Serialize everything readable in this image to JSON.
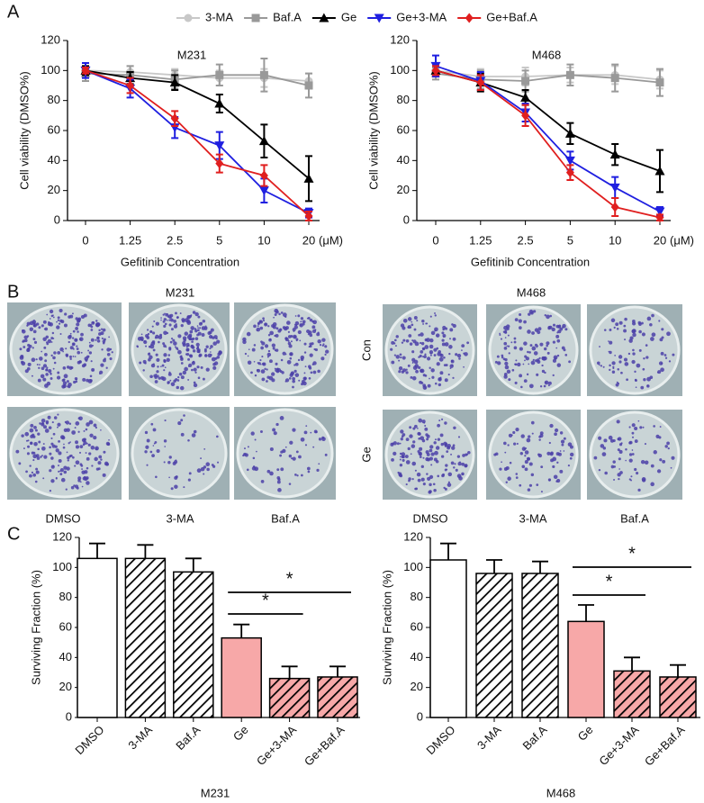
{
  "panel_labels": [
    "A",
    "B",
    "C"
  ],
  "chart_data": [
    {
      "type": "line",
      "title": "M231",
      "x_label": "Gefitinib Concentration",
      "y_label": "Cell viability (DMSO%)",
      "categories": [
        "0",
        "1.25",
        "2.5",
        "5",
        "10",
        "20"
      ],
      "x_unit": "(μM)",
      "ylim": [
        0,
        120
      ],
      "yticks": [
        0,
        20,
        40,
        60,
        80,
        100,
        120
      ],
      "series": [
        {
          "name": "3-MA",
          "color": "#c8c8c8",
          "marker": "circle",
          "values": [
            100,
            99,
            97,
            95,
            95,
            93
          ],
          "errors": [
            5,
            4,
            4,
            5,
            6,
            5
          ]
        },
        {
          "name": "Baf.A",
          "color": "#999999",
          "marker": "square",
          "values": [
            98,
            97,
            94,
            97,
            97,
            90
          ],
          "errors": [
            5,
            6,
            6,
            7,
            11,
            8
          ]
        },
        {
          "name": "Ge",
          "color": "#000000",
          "marker": "triangle-up",
          "values": [
            100,
            95,
            92,
            78,
            53,
            28
          ],
          "errors": [
            3,
            4,
            5,
            6,
            11,
            15
          ]
        },
        {
          "name": "Ge+3-MA",
          "color": "#1f1fe0",
          "marker": "triangle-down",
          "values": [
            100,
            88,
            62,
            50,
            20,
            5
          ],
          "errors": [
            5,
            6,
            7,
            9,
            8,
            3
          ]
        },
        {
          "name": "Ge+Baf.A",
          "color": "#e01f1f",
          "marker": "diamond",
          "values": [
            100,
            90,
            68,
            38,
            30,
            3
          ],
          "errors": [
            2,
            5,
            5,
            6,
            7,
            3
          ]
        }
      ]
    },
    {
      "type": "line",
      "title": "M468",
      "x_label": "Gefitinib Concentration",
      "y_label": "Cell viability (DMSO%)",
      "categories": [
        "0",
        "1.25",
        "2.5",
        "5",
        "10",
        "20"
      ],
      "x_unit": "(μM)",
      "ylim": [
        0,
        120
      ],
      "yticks": [
        0,
        20,
        40,
        60,
        80,
        100,
        120
      ],
      "series": [
        {
          "color": "#c8c8c8",
          "marker": "circle",
          "values": [
            100,
            96,
            96,
            97,
            97,
            94
          ],
          "errors": [
            4,
            5,
            6,
            5,
            6,
            6
          ]
        },
        {
          "color": "#999999",
          "marker": "square",
          "values": [
            98,
            94,
            93,
            97,
            95,
            92
          ],
          "errors": [
            4,
            6,
            7,
            7,
            9,
            9
          ]
        },
        {
          "color": "#000000",
          "marker": "triangle-up",
          "values": [
            100,
            92,
            82,
            58,
            44,
            33
          ],
          "errors": [
            3,
            6,
            5,
            7,
            7,
            14
          ]
        },
        {
          "color": "#1f1fe0",
          "marker": "triangle-down",
          "values": [
            103,
            93,
            72,
            40,
            22,
            6
          ],
          "errors": [
            7,
            6,
            6,
            6,
            7,
            3
          ]
        },
        {
          "color": "#e01f1f",
          "marker": "diamond",
          "values": [
            100,
            92,
            70,
            32,
            9,
            2
          ],
          "errors": [
            3,
            5,
            7,
            5,
            6,
            2
          ]
        }
      ]
    },
    {
      "type": "bar",
      "x_label": "M231",
      "y_label": "Surviving Fraction (%)",
      "categories": [
        "DMSO",
        "3-MA",
        "Baf.A",
        "Ge",
        "Ge+3-MA",
        "Ge+Baf.A"
      ],
      "values": [
        106,
        106,
        97,
        53,
        26,
        27
      ],
      "errors": [
        10,
        9,
        9,
        9,
        8,
        7
      ],
      "colors": [
        "#ffffff",
        "#ffffff",
        "#ffffff",
        "#f7a8a8",
        "#f7a8a8",
        "#f7a8a8"
      ],
      "hatched": [
        false,
        true,
        true,
        false,
        true,
        true
      ],
      "annotations": [
        {
          "label": "*"
        },
        {
          "label": "*"
        }
      ],
      "ylim": [
        0,
        120
      ],
      "yticks": [
        0,
        20,
        40,
        60,
        80,
        100,
        120
      ]
    },
    {
      "type": "bar",
      "x_label": "M468",
      "y_label": "Surviving Fraction (%)",
      "categories": [
        "DMSO",
        "3-MA",
        "Baf.A",
        "Ge",
        "Ge+3-MA",
        "Ge+Baf.A"
      ],
      "values": [
        105,
        96,
        96,
        64,
        31,
        27
      ],
      "errors": [
        11,
        9,
        8,
        11,
        9,
        8
      ],
      "colors": [
        "#ffffff",
        "#ffffff",
        "#ffffff",
        "#f7a8a8",
        "#f7a8a8",
        "#f7a8a8"
      ],
      "hatched": [
        false,
        true,
        true,
        false,
        true,
        true
      ],
      "annotations": [
        {
          "label": "*"
        },
        {
          "label": "*"
        }
      ],
      "ylim": [
        0,
        120
      ],
      "yticks": [
        0,
        20,
        40,
        60,
        80,
        100,
        120
      ]
    }
  ],
  "colony_panels": [
    {
      "title": "M231",
      "rows": [
        "Con",
        "Ge"
      ],
      "columns": [
        "DMSO",
        "3-MA",
        "Baf.A"
      ]
    },
    {
      "title": "M468",
      "rows": [
        "Con",
        "Ge"
      ],
      "columns": [
        "DMSO",
        "3-MA",
        "Baf.A"
      ]
    }
  ]
}
